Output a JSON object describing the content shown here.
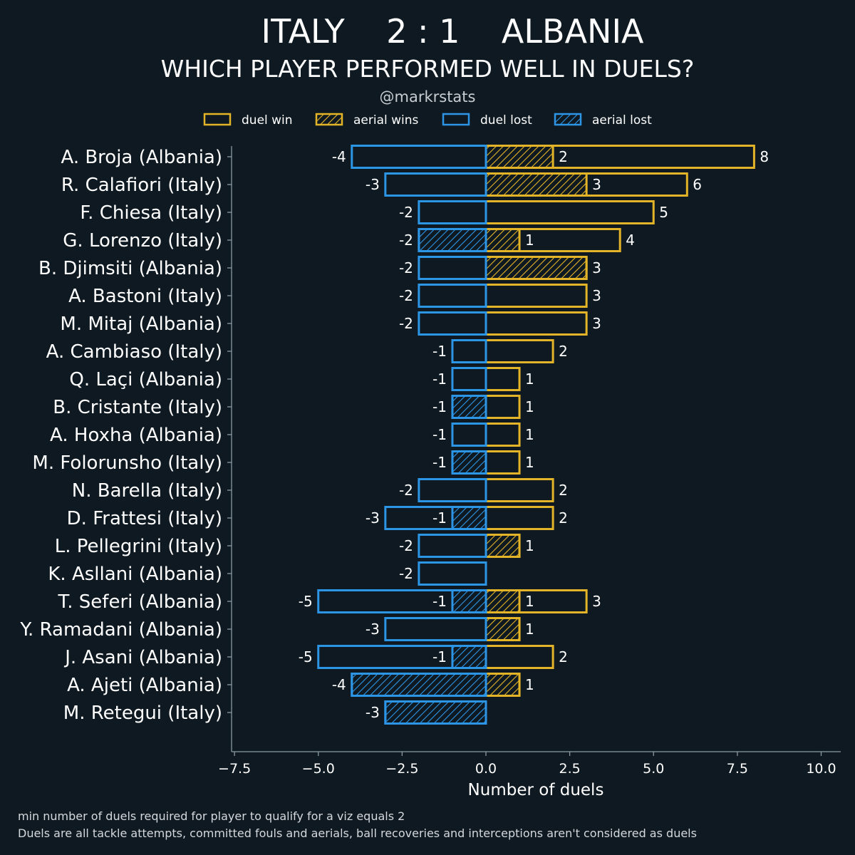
{
  "chart_data": {
    "type": "bar",
    "title": "ITALY    2 : 1    ALBANIA",
    "subtitle": "WHICH PLAYER PERFORMED WELL IN DUELS?",
    "handle": "@markrstats",
    "xlabel": "Number of duels",
    "xlim": [
      -7.5,
      10.5
    ],
    "xticks": [
      -7.5,
      -5.0,
      -2.5,
      0.0,
      2.5,
      5.0,
      7.5,
      10.0
    ],
    "xtick_labels": [
      "−7.5",
      "−5.0",
      "−2.5",
      "0.0",
      "2.5",
      "5.0",
      "7.5",
      "10.0"
    ],
    "legend": [
      {
        "key": "duel_win",
        "label": "duel win",
        "color": "#e4b428",
        "hatched": false
      },
      {
        "key": "aerial_wins",
        "label": "aerial wins",
        "color": "#e4b428",
        "hatched": true
      },
      {
        "key": "duel_lost",
        "label": "duel lost",
        "color": "#2d95e6",
        "hatched": false
      },
      {
        "key": "aerial_lost",
        "label": "aerial lost",
        "color": "#2d95e6",
        "hatched": true
      }
    ],
    "legend_position": "top-center",
    "grid": false,
    "categories": [
      "A. Broja (Albania)",
      "R. Calafiori (Italy)",
      "F. Chiesa (Italy)",
      "G. Lorenzo (Italy)",
      "B. Djimsiti (Albania)",
      "A. Bastoni (Italy)",
      "M. Mitaj (Albania)",
      "A. Cambiaso (Italy)",
      "Q. Laçi (Albania)",
      "B. Cristante (Italy)",
      "A. Hoxha (Albania)",
      "M. Folorunsho (Italy)",
      "N. Barella (Italy)",
      "D. Frattesi (Italy)",
      "L. Pellegrini (Italy)",
      "K. Asllani (Albania)",
      "T. Seferi (Albania)",
      "Y. Ramadani (Albania)",
      "J. Asani (Albania)",
      "A. Ajeti (Albania)",
      "M. Retegui (Italy)"
    ],
    "series": [
      {
        "name": "duel win",
        "values": [
          8,
          6,
          5,
          4,
          3,
          3,
          3,
          2,
          1,
          1,
          1,
          1,
          2,
          2,
          1,
          0,
          3,
          1,
          2,
          1,
          0
        ]
      },
      {
        "name": "aerial wins",
        "values": [
          2,
          3,
          0,
          1,
          3,
          0,
          0,
          0,
          0,
          0,
          0,
          0,
          0,
          0,
          1,
          0,
          1,
          1,
          0,
          1,
          0
        ]
      },
      {
        "name": "duel lost",
        "values": [
          -4,
          -3,
          -2,
          -2,
          -2,
          -2,
          -2,
          -1,
          -1,
          -1,
          -1,
          -1,
          -2,
          -3,
          -2,
          -2,
          -5,
          -3,
          -5,
          -4,
          -3
        ]
      },
      {
        "name": "aerial lost",
        "values": [
          0,
          0,
          0,
          -2,
          0,
          0,
          0,
          0,
          0,
          -1,
          0,
          -1,
          0,
          -1,
          0,
          0,
          -1,
          0,
          -1,
          -4,
          -3
        ]
      }
    ]
  },
  "footnotes": [
    "min number of duels required for player to qualify for a viz equals 2",
    "Duels are all tackle attempts, committed fouls and aerials, ball recoveries and interceptions aren't considered as duels"
  ],
  "colors": {
    "background": "#0e1921",
    "win": "#e4b428",
    "loss": "#2d95e6",
    "axis": "#8a9aa3"
  }
}
